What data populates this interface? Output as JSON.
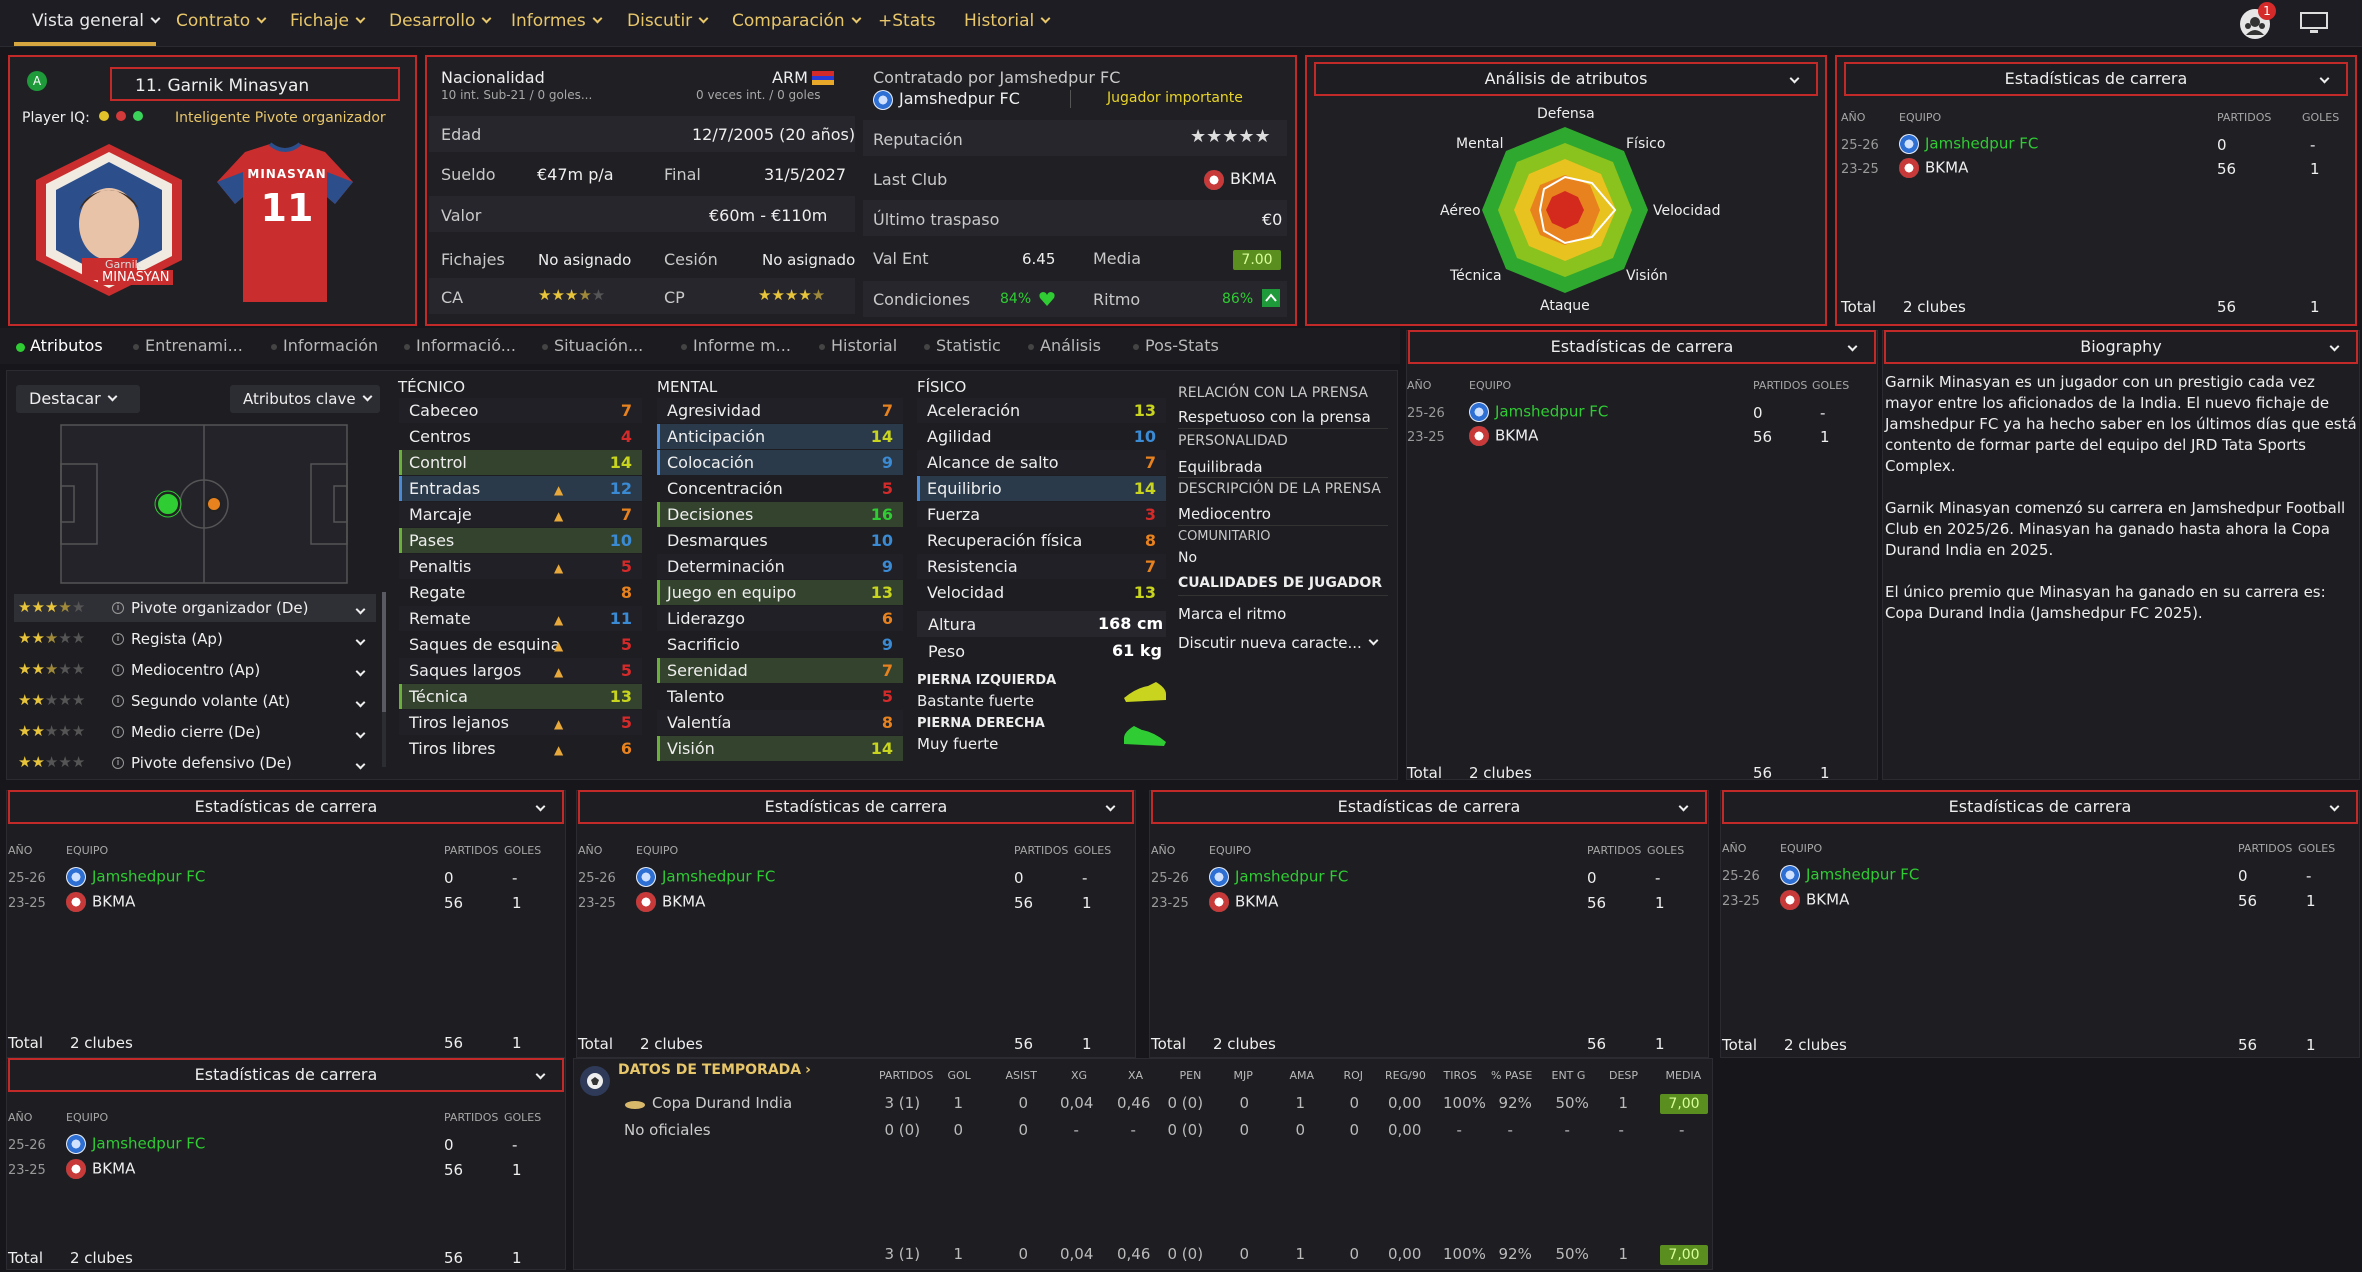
{
  "nav": {
    "items": [
      "Vista general",
      "Contrato",
      "Fichaje",
      "Desarrollo",
      "Informes",
      "Discutir",
      "Comparación",
      "+Stats",
      "Historial"
    ],
    "notif_count": "1"
  },
  "player": {
    "name": "11. Garnik Minasyan",
    "playeriq_label": "Player IQ:",
    "role_desc": "Inteligente Pivote organizador",
    "shirt_name": "MINASYAN",
    "shirt_number": "11",
    "card_first": "Garnik",
    "card_last": "MINASYAN"
  },
  "info": {
    "nationality_label": "Nacionalidad",
    "nationality_value": "ARM",
    "intl_caps": "10 int. Sub-21 / 0 goles...",
    "intl_senior": "0 veces int. / 0 goles",
    "age_label": "Edad",
    "age_value": "12/7/2005 (20 años)",
    "wage_label": "Sueldo",
    "wage_value": "€47m p/a",
    "end_label": "Final",
    "end_value": "31/5/2027",
    "value_label": "Valor",
    "value_value": "€60m - €110m",
    "transfer_label": "Fichajes",
    "transfer_value": "No asignado",
    "loan_label": "Cesión",
    "loan_value": "No asignado",
    "ca_label": "CA",
    "cp_label": "CP",
    "contracted_label": "Contratado por Jamshedpur FC",
    "club": "Jamshedpur FC",
    "status": "Jugador importante",
    "rep_label": "Reputación",
    "lastclub_label": "Last Club",
    "lastclub_value": "BKMA",
    "lasttransfer_label": "Último traspaso",
    "lasttransfer_value": "€0",
    "valent_label": "Val Ent",
    "valent_value": "6.45",
    "media_label": "Media",
    "media_value": "7.00",
    "cond_label": "Condiciones",
    "cond_value": "84%",
    "ritmo_label": "Ritmo",
    "ritmo_value": "86%"
  },
  "analysis": {
    "title": "Análisis de atributos",
    "labels": [
      "Defensa",
      "Físico",
      "Velocidad",
      "Visión",
      "Ataque",
      "Técnica",
      "Aéreo",
      "Mental"
    ]
  },
  "career_title": "Estadísticas de carrera",
  "career": {
    "col_year": "AÑO",
    "col_team": "EQUIPO",
    "col_apps": "PARTIDOS",
    "col_goals": "GOLES",
    "rows": [
      {
        "year": "25-26",
        "team": "Jamshedpur FC",
        "apps": "0",
        "goals": "-"
      },
      {
        "year": "23-25",
        "team": "BKMA",
        "apps": "56",
        "goals": "1"
      }
    ],
    "total_label": "Total",
    "total_clubs": "2 clubes",
    "total_apps": "56",
    "total_goals": "1"
  },
  "biography": {
    "title": "Biography",
    "p1": "Garnik Minasyan es un jugador con un prestigio cada vez mayor entre los aficionados de la India. El nuevo fichaje de Jamshedpur FC ya ha hecho saber en los últimos días que está contento de formar parte del equipo del JRD Tata Sports Complex.",
    "p2": "Garnik Minasyan comenzó su carrera en Jamshedpur Football Club en 2025/26. Minasyan ha ganado hasta ahora la Copa Durand India en 2025.",
    "p3": "El único premio que Minasyan ha ganado en su carrera es: Copa Durand India (Jamshedpur FC 2025)."
  },
  "subtabs": [
    "Atributos",
    "Entrenami...",
    "Información",
    "Informació...",
    "Situación...",
    "Informe m...",
    "Historial",
    "Statistic",
    "Análisis",
    "Pos-Stats"
  ],
  "pitch": {
    "highlight_label": "Destacar",
    "key_attrs_label": "Atributos clave"
  },
  "roles": [
    {
      "name": "Pivote organizador (De)",
      "stars": 3.5
    },
    {
      "name": "Regista (Ap)",
      "stars": 2.5
    },
    {
      "name": "Mediocentro (Ap)",
      "stars": 2.5
    },
    {
      "name": "Segundo volante (At)",
      "stars": 2
    },
    {
      "name": "Medio cierre (De)",
      "stars": 2
    },
    {
      "name": "Pivote defensivo (De)",
      "stars": 2
    }
  ],
  "technical": {
    "title": "TÉCNICO",
    "attrs": [
      {
        "name": "Cabeceo",
        "v": "7"
      },
      {
        "name": "Centros",
        "v": "4"
      },
      {
        "name": "Control",
        "v": "14"
      },
      {
        "name": "Entradas",
        "v": "12"
      },
      {
        "name": "Marcaje",
        "v": "7"
      },
      {
        "name": "Pases",
        "v": "10"
      },
      {
        "name": "Penaltis",
        "v": "5"
      },
      {
        "name": "Regate",
        "v": "8"
      },
      {
        "name": "Remate",
        "v": "11"
      },
      {
        "name": "Saques de esquina",
        "v": "5"
      },
      {
        "name": "Saques largos",
        "v": "5"
      },
      {
        "name": "Técnica",
        "v": "13"
      },
      {
        "name": "Tiros lejanos",
        "v": "5"
      },
      {
        "name": "Tiros libres",
        "v": "6"
      }
    ]
  },
  "mental": {
    "title": "MENTAL",
    "attrs": [
      {
        "name": "Agresividad",
        "v": "7"
      },
      {
        "name": "Anticipación",
        "v": "14"
      },
      {
        "name": "Colocación",
        "v": "9"
      },
      {
        "name": "Concentración",
        "v": "5"
      },
      {
        "name": "Decisiones",
        "v": "16"
      },
      {
        "name": "Desmarques",
        "v": "10"
      },
      {
        "name": "Determinación",
        "v": "9"
      },
      {
        "name": "Juego en equipo",
        "v": "13"
      },
      {
        "name": "Liderazgo",
        "v": "6"
      },
      {
        "name": "Sacrificio",
        "v": "9"
      },
      {
        "name": "Serenidad",
        "v": "7"
      },
      {
        "name": "Talento",
        "v": "5"
      },
      {
        "name": "Valentía",
        "v": "8"
      },
      {
        "name": "Visión",
        "v": "14"
      }
    ]
  },
  "physical": {
    "title": "FÍSICO",
    "attrs": [
      {
        "name": "Aceleración",
        "v": "13"
      },
      {
        "name": "Agilidad",
        "v": "10"
      },
      {
        "name": "Alcance de salto",
        "v": "7"
      },
      {
        "name": "Equilibrio",
        "v": "14"
      },
      {
        "name": "Fuerza",
        "v": "3"
      },
      {
        "name": "Recuperación física",
        "v": "8"
      },
      {
        "name": "Resistencia",
        "v": "7"
      },
      {
        "name": "Velocidad",
        "v": "13"
      }
    ],
    "height_label": "Altura",
    "height_value": "168 cm",
    "weight_label": "Peso",
    "weight_value": "61 kg",
    "left_foot_label": "PIERNA IZQUIERDA",
    "left_foot_value": "Bastante fuerte",
    "right_foot_label": "PIERNA DERECHA",
    "right_foot_value": "Muy fuerte"
  },
  "press": {
    "rel_label": "RELACIÓN CON LA PRENSA",
    "rel_value": "Respetuoso con la prensa",
    "pers_label": "PERSONALIDAD",
    "pers_value": "Equilibrada",
    "desc_label": "DESCRIPCIÓN DE LA PRENSA",
    "desc_value": "Mediocentro",
    "comm_label": "COMUNITARIO",
    "comm_value": "No",
    "qual_label": "CUALIDADES DE JUGADOR",
    "qual_value": "Marca el ritmo",
    "discuss_label": "Discutir nueva caracte..."
  },
  "season": {
    "title": "DATOS DE TEMPORADA",
    "cols": [
      "PARTIDOS",
      "GOL",
      "ASIST",
      "XG",
      "XA",
      "PEN",
      "MJP",
      "AMA",
      "ROJ",
      "REG/90",
      "TIROS",
      "% PASE",
      "ENT G",
      "DESP",
      "MEDIA"
    ],
    "rows": [
      {
        "name": "Copa Durand India",
        "vals": [
          "3 (1)",
          "1",
          "0",
          "0,04",
          "0,46",
          "0 (0)",
          "0",
          "1",
          "0",
          "0,00",
          "100%",
          "92%",
          "50%",
          "1"
        ],
        "media": "7,00"
      },
      {
        "name": "No oficiales",
        "vals": [
          "0 (0)",
          "0",
          "0",
          "-",
          "-",
          "0 (0)",
          "0",
          "0",
          "0",
          "0,00",
          "-",
          "-",
          "-",
          "-"
        ],
        "media": "-"
      }
    ],
    "total": [
      "3 (1)",
      "1",
      "0",
      "0,04",
      "0,46",
      "0 (0)",
      "0",
      "1",
      "0",
      "0,00",
      "100%",
      "92%",
      "50%",
      "1"
    ],
    "total_media": "7,00"
  }
}
